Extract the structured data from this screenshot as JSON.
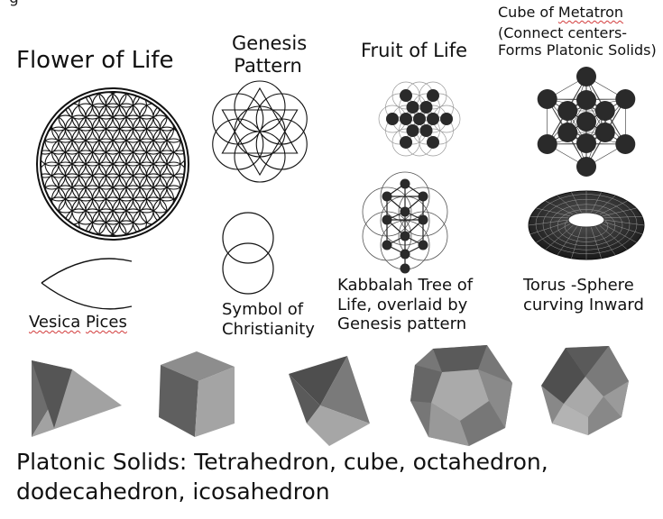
{
  "labels": {
    "top_cut": "g                                         g",
    "flower": "Flower of  Life",
    "genesis": "Genesis\nPattern",
    "fruit": "Fruit of Life",
    "metatron_pre": "Cube of ",
    "metatron_word": "Metatron",
    "metatron_rest": "(Connect centers-\nForms Platonic Solids)",
    "vesica_word1": "Vesica",
    "vesica_word2": "Pices",
    "christianity": "Symbol of\nChristianity",
    "kabbalah": "Kabbalah Tree of\nLife, overlaid by\nGenesis pattern",
    "torus": "Torus -Sphere\ncurving Inward",
    "platonic": "Platonic Solids: Tetrahedron, cube, octahedron,\ndodecahedron, icosahedron"
  }
}
